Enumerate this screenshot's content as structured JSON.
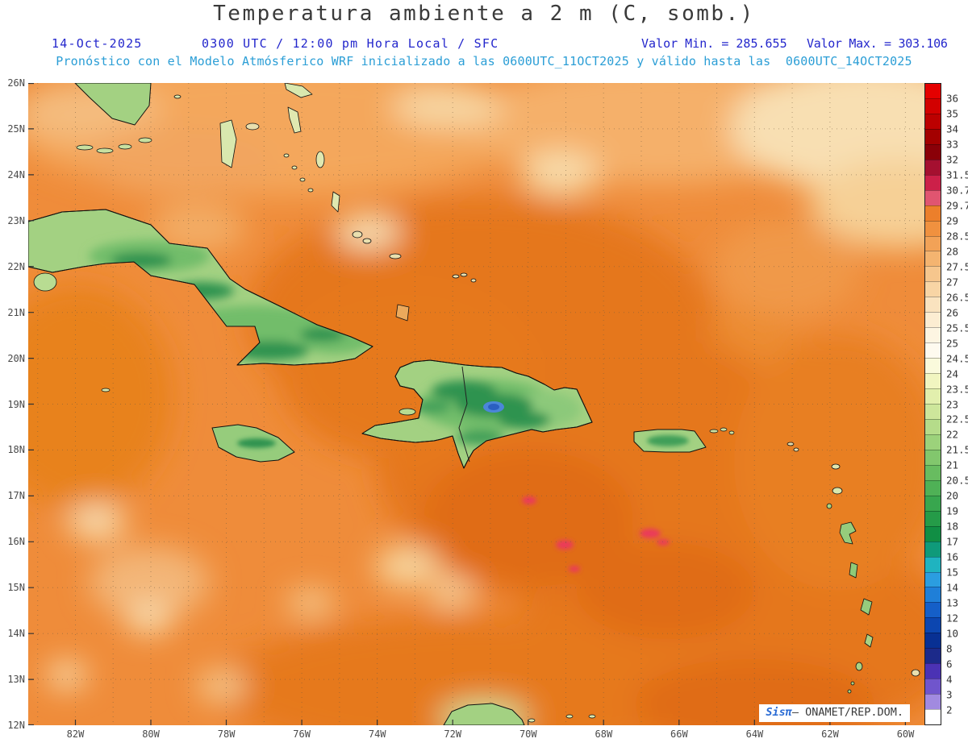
{
  "colors": {
    "title": "#3a3a3a",
    "subtitle_blue": "#2326cc",
    "forecast_blue": "#2b9ed6",
    "axis": "#4a4a4a",
    "credit_blue": "#2a6bd4",
    "sea_base_orange": "#ef8c3a",
    "hot_orange": "#e5771d",
    "land_green": "#a3d182",
    "mountain_green": "#2f9350",
    "cold_lake_blue": "#2b5fc0",
    "hot_spot_pink": "#ea3a5a"
  },
  "header": {
    "title": "Temperatura ambiente a 2 m (C, somb.)",
    "date": "14-Oct-2025",
    "time": "0300 UTC / 12:00 pm Hora Local / SFC",
    "valor_min": "Valor Min. = 285.655",
    "valor_max": "Valor Max. = 303.106",
    "forecast": "Pronóstico con el Modelo Atmósferico WRF inicializado a las 0600UTC_11OCT2025 y válido hasta las  0600UTC_14OCT2025"
  },
  "map": {
    "lat_labels": [
      "26N",
      "25N",
      "24N",
      "23N",
      "22N",
      "21N",
      "20N",
      "19N",
      "18N",
      "17N",
      "16N",
      "15N",
      "14N",
      "13N",
      "12N"
    ],
    "lon_labels": [
      "82W",
      "80W",
      "78W",
      "76W",
      "74W",
      "72W",
      "70W",
      "68W",
      "66W",
      "64W",
      "62W",
      "60W"
    ],
    "credit_prefix": "Sisπ",
    "credit_text": "– ONAMET/REP.DOM."
  },
  "colorbar": {
    "labels": [
      "36",
      "35",
      "34",
      "33",
      "32",
      "31.5",
      "30.7",
      "29.7",
      "29",
      "28.5",
      "28",
      "27.5",
      "27",
      "26.5",
      "26",
      "25.5",
      "25",
      "24.5",
      "24",
      "23.5",
      "23",
      "22.5",
      "22",
      "21.5",
      "21",
      "20.5",
      "20",
      "19",
      "18",
      "17",
      "16",
      "15",
      "14",
      "13",
      "12",
      "10",
      "8",
      "6",
      "4",
      "3",
      "2"
    ],
    "colors": [
      "#e40000",
      "#d20000",
      "#bc0000",
      "#a30000",
      "#8a0008",
      "#a51030",
      "#cc2049",
      "#e05570",
      "#ec7f2b",
      "#f0913f",
      "#f2a257",
      "#f4b470",
      "#f6c68d",
      "#f8d5a5",
      "#fae3bf",
      "#fcedd2",
      "#fdf5e2",
      "#fefaef",
      "#fafadc",
      "#f1f5c0",
      "#e2efad",
      "#cde69b",
      "#b5dc8a",
      "#9cd27b",
      "#82c76d",
      "#68bc60",
      "#4fb156",
      "#38a64e",
      "#259b48",
      "#118e44",
      "#0f9a7a",
      "#1fb3c0",
      "#2b9de0",
      "#1f7fd8",
      "#155fc8",
      "#0c46b0",
      "#083093",
      "#1c2a8a",
      "#4b32b4",
      "#7055cc",
      "#a18ae0",
      "#ffffff"
    ]
  }
}
